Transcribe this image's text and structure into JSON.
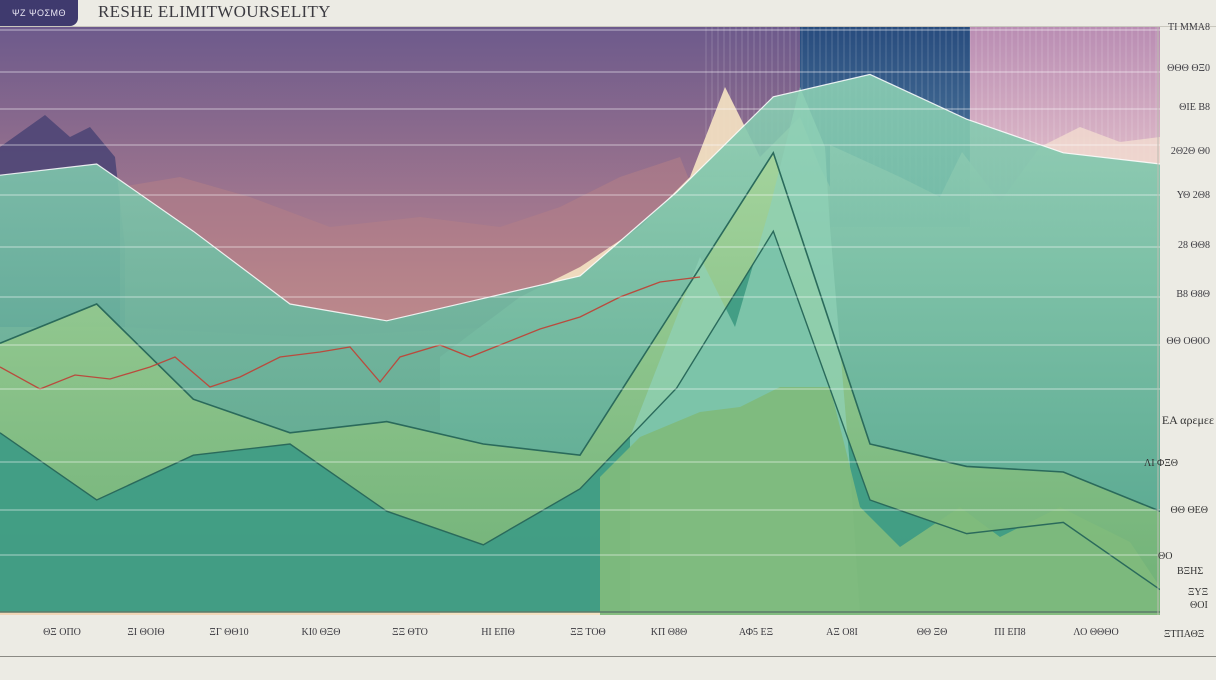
{
  "header": {
    "badge": "ΨΖ ΨΟΣΜΘ",
    "title": "RESHE ELIMITWOURSELITY"
  },
  "chart_data": {
    "type": "area",
    "title": "RESHE ELIMITWOURSELITY",
    "ytick_labels": [
      "ΤΙ ΜΜΑ8",
      "ΘΘΘ ΘΞ0",
      "ΘΙΕ Β8",
      "2Θ2Θ Θ0",
      "ΥΘ 2Θ8",
      "28 ΘΘ8",
      "Β8 Θ8Θ",
      "ΘΘ ΟΘ0Ο"
    ],
    "xtick_labels": [
      "ΘΞ ΟΠΟ",
      "ΞΙ ΘΟΙΘ",
      "ΞΓ ΘΘ10",
      "ΚΙ0 ΘΞΘ",
      "ΞΞ ΘΤΟ",
      "ΗΙ ΕΠΘ",
      "ΞΞ ΤΟΘ",
      "ΚΠ Θ8Θ",
      "ΑΦ5 ΕΞ",
      "ΑΞ Ο8Ι",
      "ΘΘ ΞΘ",
      "ΠΙ ΕΠ8",
      "ΛΟ ΘΘΘΟ"
    ],
    "legend_label": "ΕΑ αρεμεε",
    "right_labels": [
      "ΛΙ ΦΞΘ",
      "ΘΘ ΘΕΘ",
      "ΘΟ",
      "ΒΞΗΣ",
      "ΞΥΞ",
      "ΘΟΙ",
      "ΞΤΠΑΘΞ"
    ],
    "colors": {
      "purple": "#524a80",
      "mauve": "#a06f8f",
      "peach": "#e8b49c",
      "cream": "#f2e6cb",
      "teal": "#4fa48a",
      "mint": "#8fcdb0",
      "green": "#7fb77c",
      "dark_green": "#2a6a5b",
      "navy": "#2e4f7f",
      "pink": "#c58cb6",
      "red_line": "#b94b3d"
    },
    "series": [
      {
        "x": [
          0,
          1,
          2,
          3,
          4,
          5,
          6,
          7,
          8,
          9,
          10,
          11,
          12
        ],
        "values": [
          78,
          80,
          68,
          55,
          52,
          56,
          60,
          75,
          92,
          96,
          88,
          82,
          80
        ]
      },
      {
        "x": [
          0,
          1,
          2,
          3,
          4,
          5,
          6,
          7,
          8,
          9,
          10,
          11,
          12
        ],
        "values": [
          48,
          55,
          38,
          32,
          34,
          30,
          28,
          55,
          82,
          30,
          26,
          25,
          18
        ]
      },
      {
        "x": [
          0,
          1,
          2,
          3,
          4,
          5,
          6,
          7,
          8,
          9,
          10,
          11,
          12
        ],
        "values": [
          32,
          20,
          28,
          30,
          18,
          12,
          22,
          40,
          68,
          20,
          14,
          16,
          4
        ]
      }
    ]
  }
}
